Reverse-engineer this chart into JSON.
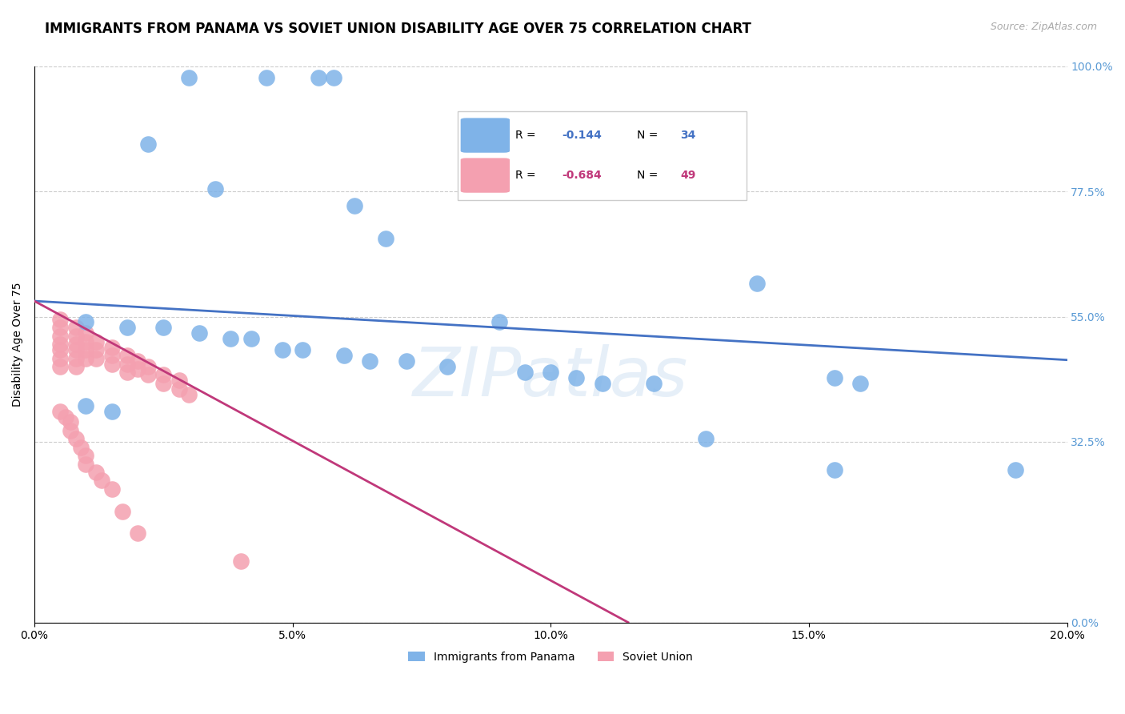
{
  "title": "IMMIGRANTS FROM PANAMA VS SOVIET UNION DISABILITY AGE OVER 75 CORRELATION CHART",
  "source": "Source: ZipAtlas.com",
  "ylabel": "Disability Age Over 75",
  "xlabel_ticks": [
    "0.0%",
    "5.0%",
    "10.0%",
    "15.0%",
    "20.0%"
  ],
  "xlabel_vals": [
    0.0,
    0.05,
    0.1,
    0.15,
    0.2
  ],
  "ylabel_ticks": [
    "0.0%",
    "32.5%",
    "55.0%",
    "77.5%",
    "100.0%"
  ],
  "ylabel_vals": [
    0.0,
    0.325,
    0.55,
    0.775,
    1.0
  ],
  "xlim": [
    0.0,
    0.2
  ],
  "ylim": [
    0.0,
    1.0
  ],
  "panama_R": -0.144,
  "panama_N": 34,
  "soviet_R": -0.684,
  "soviet_N": 49,
  "panama_color": "#7fb3e8",
  "soviet_color": "#f4a0b0",
  "panama_line_color": "#4472c4",
  "soviet_line_color": "#c0387a",
  "watermark": "ZIPatlas",
  "panama_scatter_x": [
    0.03,
    0.045,
    0.055,
    0.058,
    0.022,
    0.035,
    0.062,
    0.068,
    0.01,
    0.018,
    0.025,
    0.032,
    0.038,
    0.042,
    0.048,
    0.052,
    0.06,
    0.065,
    0.072,
    0.08,
    0.09,
    0.095,
    0.1,
    0.105,
    0.11,
    0.12,
    0.14,
    0.155,
    0.16,
    0.01,
    0.015,
    0.13,
    0.155,
    0.19
  ],
  "panama_scatter_y": [
    0.98,
    0.98,
    0.98,
    0.98,
    0.86,
    0.78,
    0.75,
    0.69,
    0.54,
    0.53,
    0.53,
    0.52,
    0.51,
    0.51,
    0.49,
    0.49,
    0.48,
    0.47,
    0.47,
    0.46,
    0.54,
    0.45,
    0.45,
    0.44,
    0.43,
    0.43,
    0.61,
    0.44,
    0.43,
    0.39,
    0.38,
    0.33,
    0.275,
    0.275
  ],
  "soviet_scatter_x": [
    0.005,
    0.005,
    0.005,
    0.005,
    0.005,
    0.005,
    0.005,
    0.008,
    0.008,
    0.008,
    0.008,
    0.008,
    0.008,
    0.01,
    0.01,
    0.01,
    0.01,
    0.012,
    0.012,
    0.012,
    0.015,
    0.015,
    0.015,
    0.018,
    0.018,
    0.018,
    0.02,
    0.02,
    0.022,
    0.022,
    0.025,
    0.025,
    0.028,
    0.028,
    0.03,
    0.005,
    0.006,
    0.007,
    0.007,
    0.008,
    0.009,
    0.01,
    0.01,
    0.012,
    0.013,
    0.015,
    0.017,
    0.02,
    0.04
  ],
  "soviet_scatter_y": [
    0.545,
    0.53,
    0.515,
    0.5,
    0.49,
    0.475,
    0.46,
    0.53,
    0.515,
    0.5,
    0.49,
    0.475,
    0.46,
    0.52,
    0.505,
    0.49,
    0.475,
    0.505,
    0.49,
    0.475,
    0.495,
    0.48,
    0.465,
    0.48,
    0.465,
    0.45,
    0.47,
    0.455,
    0.46,
    0.445,
    0.445,
    0.43,
    0.435,
    0.42,
    0.41,
    0.38,
    0.37,
    0.36,
    0.345,
    0.33,
    0.315,
    0.3,
    0.285,
    0.27,
    0.255,
    0.24,
    0.2,
    0.16,
    0.11
  ],
  "panama_line_x": [
    0.0,
    0.2
  ],
  "panama_line_y": [
    0.578,
    0.472
  ],
  "soviet_line_x": [
    0.0,
    0.115
  ],
  "soviet_line_y": [
    0.578,
    0.0
  ],
  "background_color": "#ffffff",
  "grid_color": "#cccccc",
  "right_tick_color": "#5b9bd5",
  "title_fontsize": 12,
  "axis_fontsize": 10,
  "legend_fontsize": 11
}
